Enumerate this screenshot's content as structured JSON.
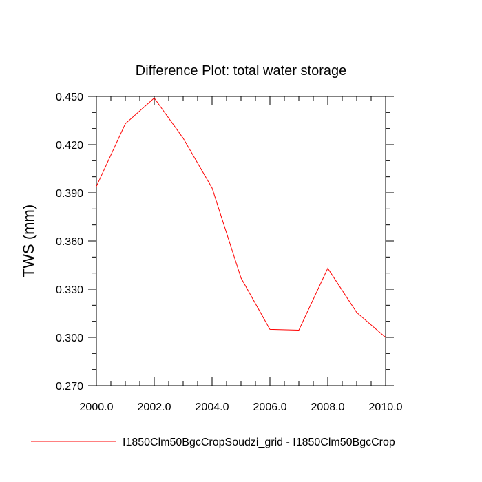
{
  "chart_data": {
    "type": "line",
    "title": "Difference Plot: total water storage",
    "xlabel": "",
    "ylabel": "TWS  (mm)",
    "xlim": [
      2000,
      2010
    ],
    "ylim": [
      0.27,
      0.45
    ],
    "xticks": [
      2000,
      2002,
      2004,
      2006,
      2008,
      2010
    ],
    "xtick_labels": [
      "2000.0",
      "2002.0",
      "2004.0",
      "2006.0",
      "2008.0",
      "2010.0"
    ],
    "yticks": [
      0.27,
      0.3,
      0.33,
      0.36,
      0.39,
      0.42,
      0.45
    ],
    "ytick_labels": [
      "0.270",
      "0.300",
      "0.330",
      "0.360",
      "0.390",
      "0.420",
      "0.450"
    ],
    "grid": false,
    "legend_position": "bottom",
    "series": [
      {
        "name": "I1850Clm50BgcCropSoudzi_grid - I1850Clm50BgcCrop",
        "color": "#ff0000",
        "x": [
          2000,
          2001,
          2002,
          2003,
          2004,
          2005,
          2006,
          2007,
          2008,
          2009,
          2010
        ],
        "y": [
          0.394,
          0.433,
          0.449,
          0.424,
          0.393,
          0.337,
          0.305,
          0.3045,
          0.343,
          0.3155,
          0.3
        ]
      }
    ]
  }
}
